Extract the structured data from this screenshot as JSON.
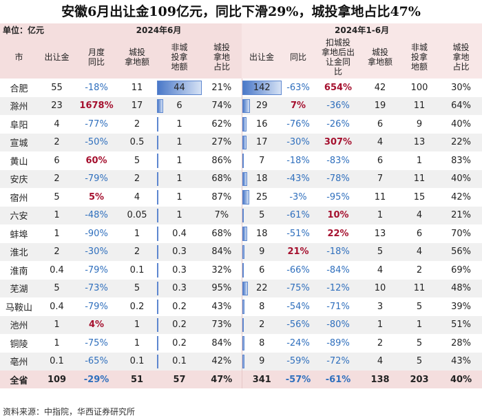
{
  "title": "安徽6月出让金109亿元，同比下滑29%，城投拿地占比47%",
  "unit_label": "单位：亿元",
  "period_1": "2024年6月",
  "period_2": "2024年1-6月",
  "headers": [
    "市",
    "出让金",
    "月度同比",
    "城投拿地额",
    "非城投拿地额",
    "城投拿地占比",
    "出让金",
    "同比",
    "扣城投拿地后出让金同比",
    "城投拿地额",
    "非城投拿地额",
    "城投拿地占比"
  ],
  "source": "资料来源：中指院，华西证券研究所",
  "colors": {
    "header_bg": "#f4dede",
    "positive_red": "#a5102e",
    "negative_blue": "#2f6fbd",
    "bar": "#4a78c8"
  },
  "chart_data": {
    "type": "table",
    "title": "安徽6月出让金109亿元，同比下滑29%，城投拿地占比47%",
    "columns": [
      "市",
      "出让金",
      "月度同比",
      "城投拿地额",
      "非城投拿地额",
      "城投拿地占比",
      "出让金",
      "同比",
      "扣城投拿地后出让金同比",
      "城投拿地额",
      "非城投拿地额",
      "城投拿地占比"
    ],
    "rows": [
      [
        "合肥",
        "55",
        "-18%",
        "11",
        "44",
        "21%",
        "142",
        "-63%",
        "654%",
        "42",
        "100",
        "30%"
      ],
      [
        "滁州",
        "23",
        "1678%",
        "17",
        "6",
        "74%",
        "29",
        "7%",
        "-36%",
        "19",
        "11",
        "64%"
      ],
      [
        "阜阳",
        "4",
        "-77%",
        "2",
        "1",
        "62%",
        "16",
        "-76%",
        "-26%",
        "6",
        "9",
        "40%"
      ],
      [
        "宣城",
        "2",
        "-50%",
        "0.5",
        "1",
        "27%",
        "17",
        "-30%",
        "307%",
        "4",
        "13",
        "22%"
      ],
      [
        "黄山",
        "6",
        "60%",
        "5",
        "1",
        "86%",
        "7",
        "-18%",
        "-83%",
        "6",
        "1",
        "83%"
      ],
      [
        "安庆",
        "2",
        "-79%",
        "2",
        "1",
        "68%",
        "18",
        "-43%",
        "-78%",
        "7",
        "11",
        "40%"
      ],
      [
        "宿州",
        "5",
        "5%",
        "4",
        "1",
        "87%",
        "25",
        "-3%",
        "-95%",
        "11",
        "15",
        "42%"
      ],
      [
        "六安",
        "1",
        "-48%",
        "0.05",
        "1",
        "7%",
        "5",
        "-61%",
        "10%",
        "1",
        "4",
        "21%"
      ],
      [
        "蚌埠",
        "1",
        "-90%",
        "1",
        "0.4",
        "68%",
        "18",
        "-51%",
        "22%",
        "13",
        "6",
        "70%"
      ],
      [
        "淮北",
        "2",
        "-30%",
        "2",
        "0.3",
        "84%",
        "9",
        "21%",
        "-18%",
        "5",
        "4",
        "56%"
      ],
      [
        "淮南",
        "0.4",
        "-79%",
        "0.1",
        "0.3",
        "32%",
        "6",
        "-66%",
        "-84%",
        "4",
        "2",
        "69%"
      ],
      [
        "芜湖",
        "5",
        "-73%",
        "5",
        "0.3",
        "95%",
        "22",
        "-75%",
        "-12%",
        "10",
        "11",
        "48%"
      ],
      [
        "马鞍山",
        "0.4",
        "-79%",
        "0.2",
        "0.2",
        "43%",
        "8",
        "-54%",
        "-71%",
        "3",
        "5",
        "39%"
      ],
      [
        "池州",
        "1",
        "4%",
        "1",
        "0.2",
        "73%",
        "2",
        "-56%",
        "-80%",
        "1",
        "1",
        "51%"
      ],
      [
        "铜陵",
        "1",
        "-75%",
        "1",
        "0.2",
        "84%",
        "8",
        "-24%",
        "-89%",
        "2",
        "5",
        "28%"
      ],
      [
        "亳州",
        "0.1",
        "-65%",
        "0.1",
        "0.1",
        "42%",
        "9",
        "-59%",
        "-72%",
        "4",
        "5",
        "43%"
      ]
    ],
    "total": [
      "全省",
      "109",
      "-29%",
      "51",
      "57",
      "47%",
      "341",
      "-57%",
      "-61%",
      "138",
      "203",
      "40%"
    ],
    "bar_columns": [
      4,
      6
    ],
    "bar_max": [
      44,
      142
    ]
  }
}
